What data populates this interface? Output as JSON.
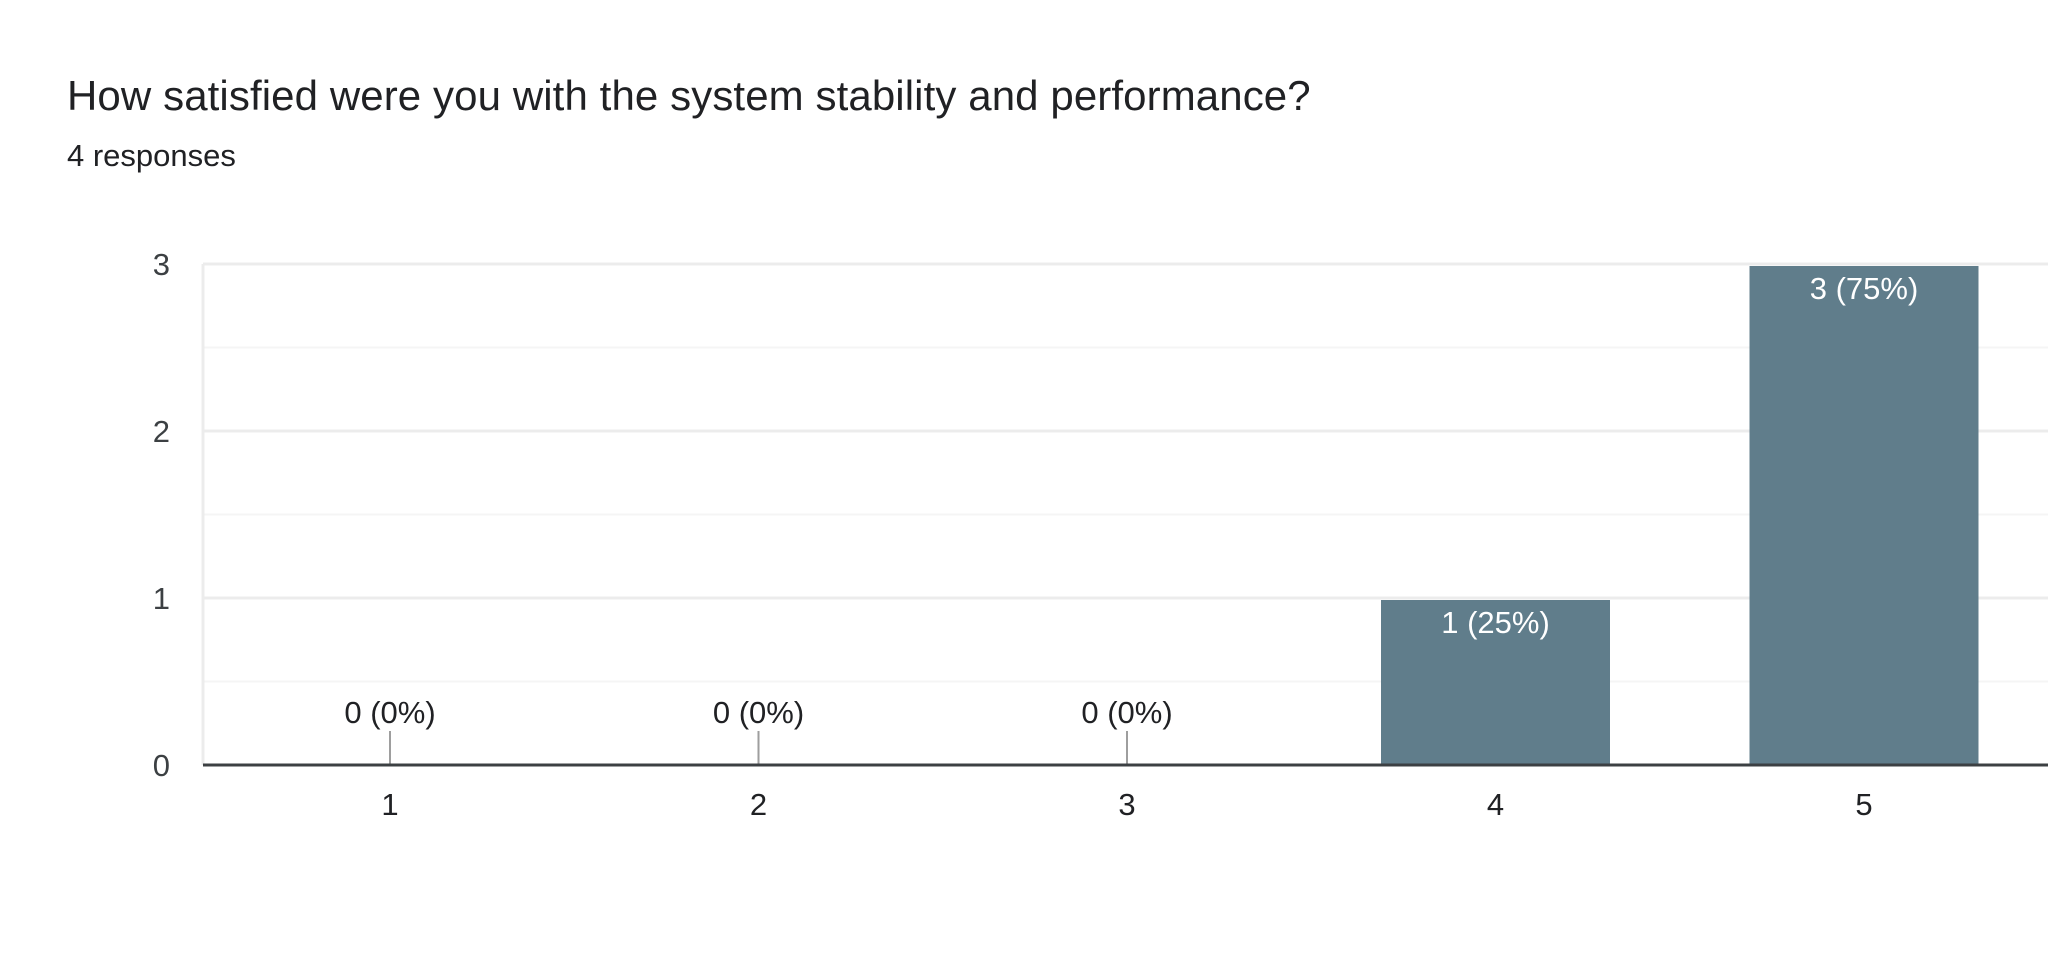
{
  "question": {
    "title": "How satisfied were you with the system stability and performance?",
    "responses_label": "4 responses"
  },
  "colors": {
    "bar": "#607d8b",
    "gridline": "#ececec",
    "minor_gridline": "#f5f5f5",
    "baseline": "#3c4043",
    "zero_stub": "#9e9e9e"
  },
  "chart_data": {
    "type": "bar",
    "categories": [
      "1",
      "2",
      "3",
      "4",
      "5"
    ],
    "values": [
      0,
      0,
      0,
      1,
      3
    ],
    "data_labels": [
      "0 (0%)",
      "0 (0%)",
      "0 (0%)",
      "1 (25%)",
      "3 (75%)"
    ],
    "ylim": [
      0,
      3
    ],
    "yticks": [
      "0",
      "1",
      "2",
      "3"
    ],
    "grid": true,
    "legend": "none",
    "title": "",
    "xlabel": "",
    "ylabel": ""
  }
}
